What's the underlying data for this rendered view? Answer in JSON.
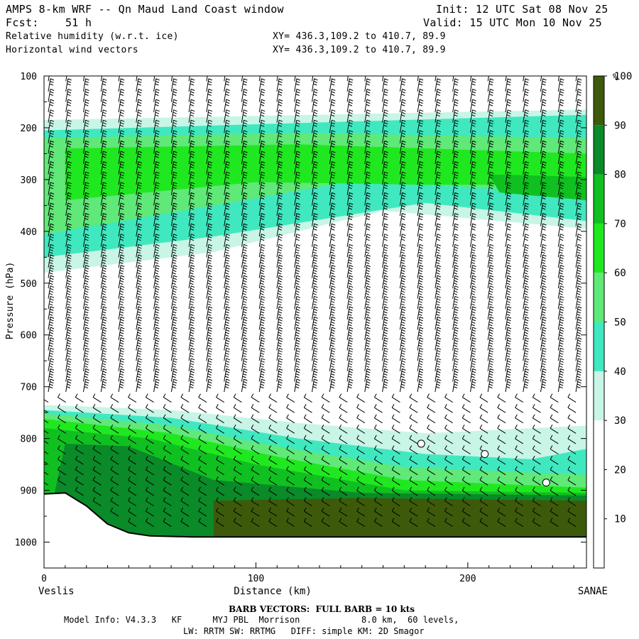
{
  "header": {
    "title_left": "AMPS 8-km WRF -- Qn Maud Land Coast window",
    "init": "Init: 12 UTC Sat 08 Nov 25",
    "fcst": "Fcst:    51 h",
    "valid": "Valid: 15 UTC Mon 10 Nov 25",
    "field1": "Relative humidity (w.r.t. ice)",
    "field1_xy": "XY= 436.3,109.2 to 410.7, 89.9",
    "field2": "Horizontal wind vectors",
    "field2_xy": "XY= 436.3,109.2 to 410.7, 89.9"
  },
  "footer": {
    "barb": "BARB VECTORS:  FULL BARB = 10 kts",
    "model_line1": "Model Info: V4.3.3   KF      MYJ PBL  Morrison            8.0 km,  60 levels,",
    "model_line2": "LW: RRTM SW: RRTMG   DIFF: simple KM: 2D Smagor"
  },
  "colorbar": {
    "unit": "%",
    "ticks": [
      "10",
      "20",
      "30",
      "40",
      "50",
      "60",
      "70",
      "80",
      "90",
      "100"
    ],
    "colors": [
      "#ffffff",
      "#ffffff",
      "#ffffff",
      "#c8f5e6",
      "#40e8c0",
      "#60e878",
      "#20e820",
      "#10c020",
      "#0a8a28",
      "#3d5a0a"
    ]
  },
  "chart_data": {
    "type": "heatmap",
    "title": "Relative humidity (w.r.t. ice)",
    "xlabel": "Distance (km)",
    "ylabel": "Pressure (hPa)",
    "xlim": [
      0,
      256
    ],
    "ylim": [
      1050,
      100
    ],
    "x_ticks": [
      "0",
      "100",
      "200"
    ],
    "x_tick_values": [
      0,
      100,
      200
    ],
    "y_ticks": [
      "100",
      "200",
      "300",
      "400",
      "500",
      "600",
      "700",
      "800",
      "900",
      "1000"
    ],
    "y_tick_values": [
      100,
      200,
      300,
      400,
      500,
      600,
      700,
      800,
      900,
      1000
    ],
    "x_end_labels": {
      "left": "Veslis",
      "right": "SANAE"
    },
    "terrain_surface_pressure": {
      "x": [
        0,
        10,
        20,
        30,
        40,
        50,
        70,
        100,
        150,
        200,
        256
      ],
      "p": [
        907,
        905,
        930,
        965,
        982,
        988,
        990,
        990,
        990,
        990,
        990
      ]
    },
    "humidity_layers": [
      {
        "name": "upper moist layer",
        "top_p_left": 195,
        "bottom_p_left": 470,
        "top_p_right": 175,
        "bottom_p_right": 385,
        "max_rh": 90
      },
      {
        "name": "boundary layer",
        "top_p_left": 740,
        "top_p_right": 790,
        "max_rh": 100
      }
    ],
    "wind": "barbs, full barb = 10 kts"
  }
}
